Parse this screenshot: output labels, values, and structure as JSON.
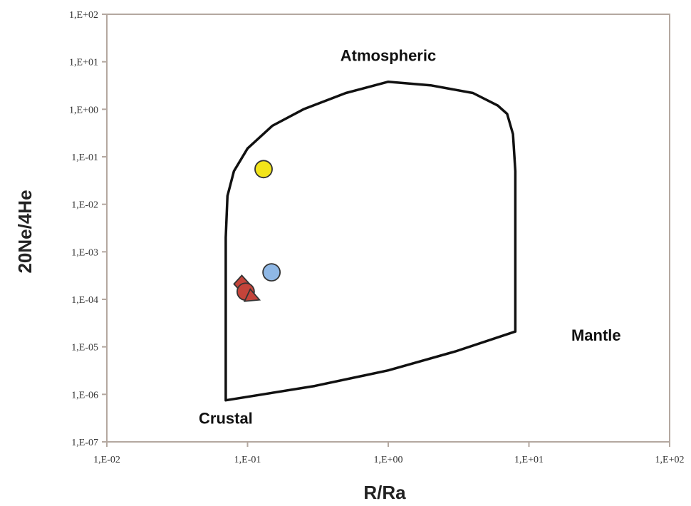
{
  "chart_data": {
    "type": "scatter",
    "title": "",
    "xlabel": "R/Ra",
    "ylabel": "20Ne/4He",
    "xscale": "log",
    "yscale": "log",
    "xlim": [
      0.01,
      100
    ],
    "ylim": [
      1e-07,
      100
    ],
    "grid": false,
    "legend": "none",
    "x_ticks": [
      {
        "value": 0.01,
        "label": "1,E-02"
      },
      {
        "value": 0.1,
        "label": "1,E-01"
      },
      {
        "value": 1,
        "label": "1,E+00"
      },
      {
        "value": 10,
        "label": "1,E+01"
      },
      {
        "value": 100,
        "label": "1,E+02"
      }
    ],
    "y_ticks": [
      {
        "value": 1e-07,
        "label": "1,E-07"
      },
      {
        "value": 1e-06,
        "label": "1,E-06"
      },
      {
        "value": 1e-05,
        "label": "1,E-05"
      },
      {
        "value": 0.0001,
        "label": "1,E-04"
      },
      {
        "value": 0.001,
        "label": "1,E-03"
      },
      {
        "value": 0.01,
        "label": "1,E-02"
      },
      {
        "value": 0.1,
        "label": "1,E-01"
      },
      {
        "value": 1,
        "label": "1,E+00"
      },
      {
        "value": 10,
        "label": "1,E+01"
      },
      {
        "value": 100,
        "label": "1,E+02"
      }
    ],
    "mixing_envelope": [
      [
        0.07,
        7.5e-07
      ],
      [
        0.3,
        1.5e-06
      ],
      [
        1.0,
        3.2e-06
      ],
      [
        3.0,
        8e-06
      ],
      [
        8.0,
        2.1e-05
      ],
      [
        8.0,
        0.05
      ],
      [
        7.7,
        0.3
      ],
      [
        7.0,
        0.8
      ],
      [
        6.0,
        1.2
      ],
      [
        4.0,
        2.2
      ],
      [
        2.0,
        3.2
      ],
      [
        1.0,
        3.8
      ],
      [
        0.5,
        2.2
      ],
      [
        0.25,
        1.0
      ],
      [
        0.15,
        0.45
      ],
      [
        0.1,
        0.15
      ],
      [
        0.08,
        0.05
      ],
      [
        0.072,
        0.015
      ],
      [
        0.07,
        0.002
      ],
      [
        0.07,
        7.5e-07
      ]
    ],
    "points": [
      {
        "x": 0.13,
        "y": 0.055,
        "color": "#f2e41a",
        "marker": "circle"
      },
      {
        "x": 0.148,
        "y": 0.00037,
        "color": "#8fb8e6",
        "marker": "circle"
      },
      {
        "x": 0.091,
        "y": 0.00021,
        "color": "#c4443a",
        "marker": "diamond"
      },
      {
        "x": 0.097,
        "y": 0.000145,
        "color": "#c4443a",
        "marker": "circle"
      },
      {
        "x": 0.107,
        "y": 0.00012,
        "color": "#c4443a",
        "marker": "triangle"
      }
    ],
    "annotations": [
      {
        "text": "Atmospheric",
        "x": 1.0,
        "y": 10.5
      },
      {
        "text": "Mantle",
        "x": 20.0,
        "y": 1.35e-05
      },
      {
        "text": "Crustal",
        "x": 0.07,
        "y": 2.4e-07
      }
    ],
    "colors": {
      "axis": "#b4a8a0",
      "envelope": "#111111"
    }
  }
}
